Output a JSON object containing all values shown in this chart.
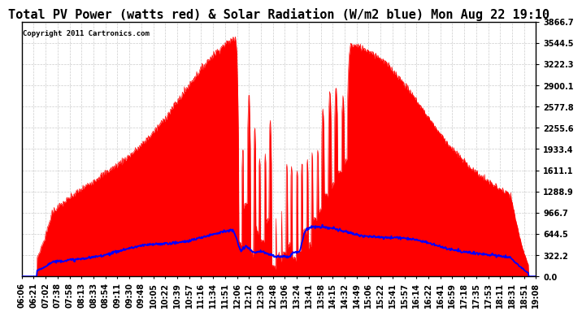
{
  "title": "Total PV Power (watts red) & Solar Radiation (W/m2 blue) Mon Aug 22 19:10",
  "copyright": "Copyright 2011 Cartronics.com",
  "bg_color": "#ffffff",
  "plot_bg_color": "#ffffff",
  "grid_color": "#cccccc",
  "y_max": 3866.7,
  "y_min": 0.0,
  "y_ticks": [
    0.0,
    322.2,
    644.5,
    966.7,
    1288.9,
    1611.1,
    1933.4,
    2255.6,
    2577.8,
    2900.1,
    3222.3,
    3544.5,
    3866.7
  ],
  "x_labels": [
    "06:06",
    "06:21",
    "07:02",
    "07:38",
    "07:58",
    "08:13",
    "08:33",
    "08:54",
    "09:11",
    "09:30",
    "09:48",
    "10:05",
    "10:22",
    "10:39",
    "10:57",
    "11:16",
    "11:34",
    "11:51",
    "12:06",
    "12:12",
    "12:30",
    "12:48",
    "13:06",
    "13:24",
    "13:41",
    "13:58",
    "14:15",
    "14:32",
    "14:49",
    "15:06",
    "15:22",
    "15:41",
    "15:57",
    "16:14",
    "16:22",
    "16:41",
    "16:59",
    "17:18",
    "17:35",
    "17:53",
    "18:11",
    "18:31",
    "18:51",
    "19:08"
  ],
  "red_color": "#ff0000",
  "blue_color": "#0000ff",
  "title_fontsize": 11,
  "tick_fontsize": 7.0,
  "pv_peak": 3750,
  "solar_peak": 720,
  "n_points": 1000
}
